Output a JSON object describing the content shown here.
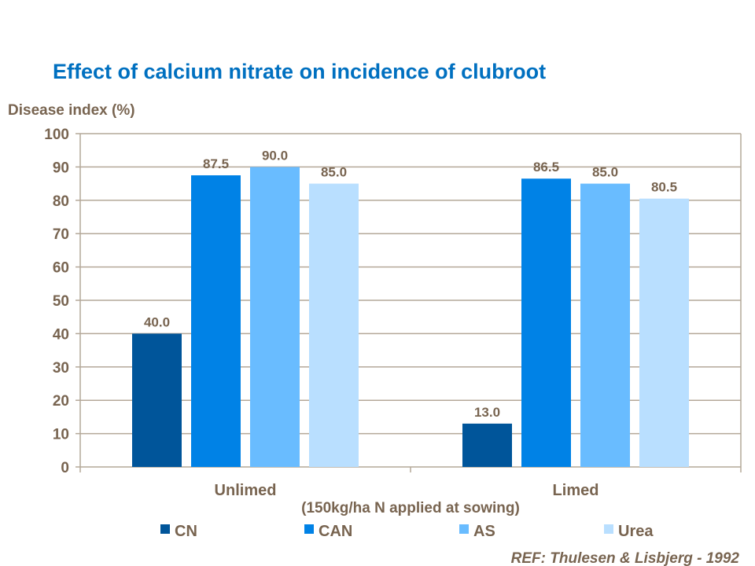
{
  "chart_data": {
    "type": "bar",
    "title": "Effect of calcium nitrate on incidence of clubroot",
    "ylabel": "Disease index (%)",
    "xlabel": "(150kg/ha N applied at sowing)",
    "categories": [
      "Unlimed",
      "Limed"
    ],
    "series": [
      {
        "name": "CN",
        "values": [
          40.0,
          13.0
        ],
        "color": "#00559a"
      },
      {
        "name": "CAN",
        "values": [
          87.5,
          86.5
        ],
        "color": "#0082e6"
      },
      {
        "name": "AS",
        "values": [
          90.0,
          85.0
        ],
        "color": "#69bcff"
      },
      {
        "name": "Urea",
        "values": [
          85.0,
          80.5
        ],
        "color": "#b9dfff"
      }
    ],
    "ylim": [
      0,
      100
    ],
    "yticks": [
      "0",
      "10",
      "20",
      "30",
      "40",
      "50",
      "60",
      "70",
      "80",
      "90",
      "100"
    ],
    "grid": true,
    "legend_position": "bottom",
    "annotation": "REF: Thulesen & Lisbjerg  - 1992",
    "colors": {
      "title": "#0070c0",
      "text": "#786450",
      "grid": "#b4a899"
    }
  }
}
